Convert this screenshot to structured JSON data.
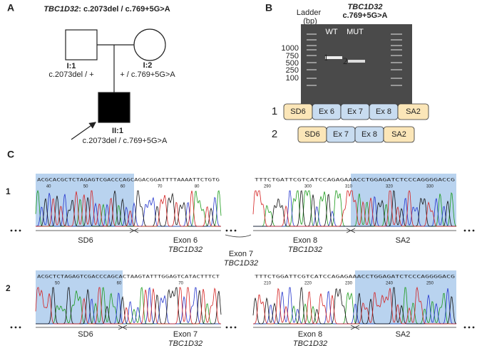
{
  "panel_a": {
    "label": "A",
    "gene": "TBC1D32",
    "title_rest": ": c.2073del / c.769+5G>A",
    "individuals": [
      {
        "id": "I:1",
        "genotype": "c.2073del / +"
      },
      {
        "id": "I:2",
        "genotype": "+ / c.769+5G>A"
      },
      {
        "id": "II:1",
        "genotype": "c.2073del / c.769+5G>A"
      }
    ]
  },
  "panel_b": {
    "label": "B",
    "gene": "TBC1D32",
    "variant": "c.769+5G>A",
    "ladder_title": "Ladder",
    "ladder_unit": "(bp)",
    "lanes": [
      "WT",
      "MUT"
    ],
    "ladder_sizes": [
      1000,
      750,
      500,
      250,
      100
    ],
    "bands": [
      "1",
      "2"
    ],
    "isoforms": [
      {
        "label": "1",
        "exons": [
          "SD6",
          "Ex 6",
          "Ex 7",
          "Ex 8",
          "SA2"
        ]
      },
      {
        "label": "2",
        "exons": [
          "SD6",
          "Ex 7",
          "Ex 8",
          "SA2"
        ]
      }
    ]
  },
  "panel_c": {
    "label": "C",
    "rows": [
      {
        "label": "1",
        "traces": [
          {
            "sequence": "ACGCACGCTCTAGAGTCGACCCAGCAGACGGATTTTAAAATTCTGTG",
            "ticks": [
              40,
              50,
              60,
              70,
              80
            ]
          },
          {
            "sequence": "TTTCTGATTCGTCATCCAGAGAAACCTGGAGATCTCCCAGGGGACCG",
            "ticks": [
              290,
              300,
              310,
              320,
              330
            ]
          }
        ],
        "regions": [
          {
            "name": "SD6"
          },
          {
            "name": "Exon 6",
            "gene": "TBC1D32"
          },
          {
            "name": "Exon 7",
            "gene": "TBC1D32"
          },
          {
            "name": "Exon 8",
            "gene": "TBC1D32"
          },
          {
            "name": "SA2"
          }
        ]
      },
      {
        "label": "2",
        "traces": [
          {
            "sequence": "ACGCTCTAGAGTCGACCCAGCACTAAGTATTTGGAGTCATACTTTCT",
            "ticks": [
              50,
              60,
              70
            ]
          },
          {
            "sequence": "TTTCTGGATTCGTCATCCAGAGAAACCTGGAGATCTCCCAGGGGACG",
            "ticks": [
              210,
              220,
              230,
              240,
              250
            ]
          }
        ],
        "regions": [
          {
            "name": "SD6"
          },
          {
            "name": "Exon 7",
            "gene": "TBC1D32"
          },
          {
            "name": "Exon 8",
            "gene": "TBC1D32"
          },
          {
            "name": "SA2"
          }
        ]
      }
    ]
  }
}
